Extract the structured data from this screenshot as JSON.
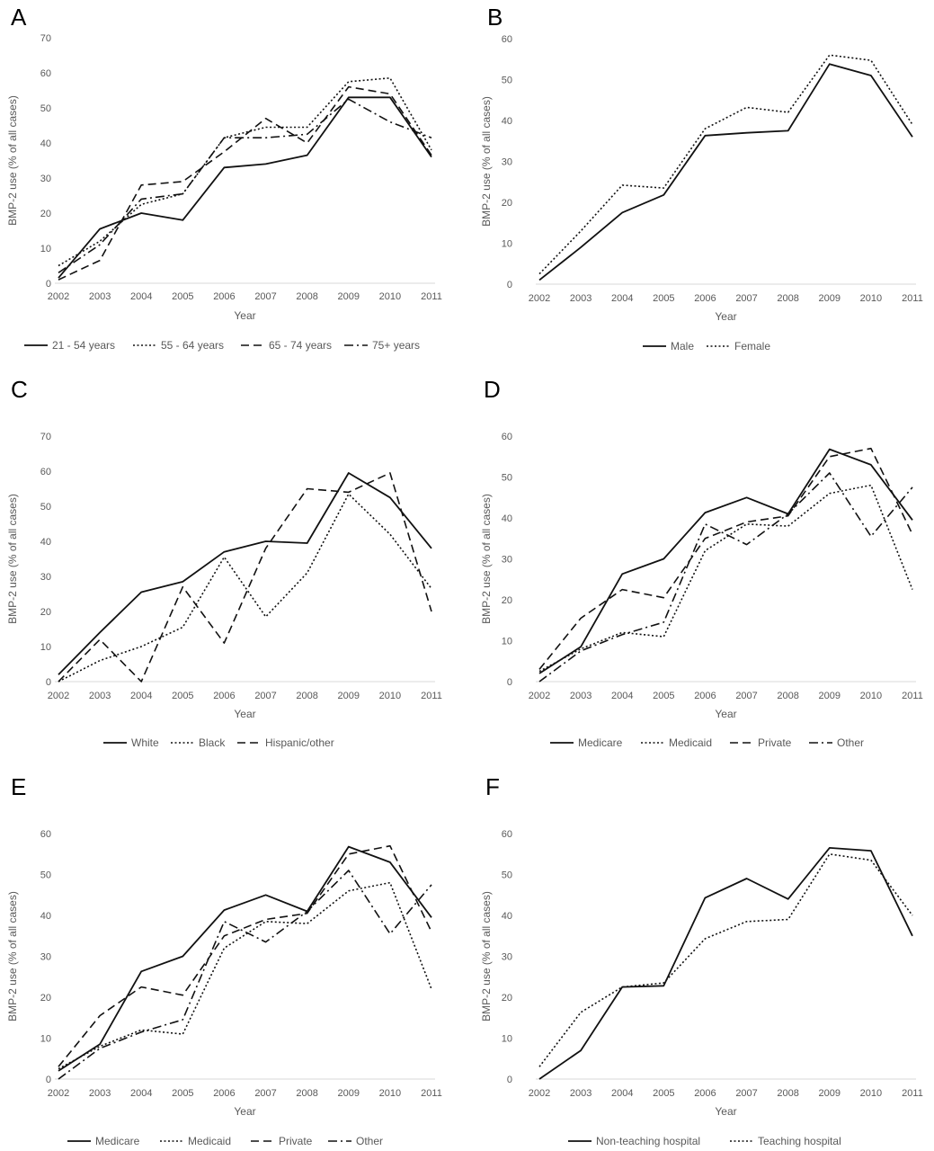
{
  "figure": {
    "panels": [
      "A",
      "B",
      "C",
      "D",
      "E",
      "F"
    ]
  },
  "chart_data": [
    {
      "panel": "A",
      "type": "line",
      "xlabel": "Year",
      "ylabel": "BMP-2 use (% of all cases)",
      "categories": [
        "2002",
        "2003",
        "2004",
        "2005",
        "2006",
        "2007",
        "2008",
        "2009",
        "2010",
        "2011"
      ],
      "ylim": [
        0,
        70
      ],
      "yticks": [
        0,
        10,
        20,
        30,
        40,
        50,
        60,
        70
      ],
      "grid": false,
      "legend": "bottom",
      "series": [
        {
          "name": "21 - 54 years",
          "style": "solid",
          "values": [
            1.5,
            15.5,
            20.0,
            18.0,
            33.0,
            34.0,
            36.5,
            53.0,
            53.0,
            36.0
          ]
        },
        {
          "name": "55 - 64 years",
          "style": "dotted",
          "values": [
            5.0,
            12.0,
            22.5,
            25.5,
            41.5,
            44.5,
            44.5,
            57.5,
            58.5,
            38.0
          ]
        },
        {
          "name": "65 - 74 years",
          "style": "dashed",
          "values": [
            1.0,
            6.5,
            28.0,
            29.0,
            37.5,
            47.0,
            40.0,
            56.0,
            54.0,
            36.5
          ]
        },
        {
          "name": "75+ years",
          "style": "dashdot",
          "values": [
            3.0,
            11.0,
            24.0,
            25.5,
            41.5,
            41.5,
            42.5,
            52.5,
            46.0,
            41.5
          ]
        }
      ]
    },
    {
      "panel": "B",
      "type": "line",
      "xlabel": "Year",
      "ylabel": "BMP-2 use (% of all cases)",
      "categories": [
        "2002",
        "2003",
        "2004",
        "2005",
        "2006",
        "2007",
        "2008",
        "2009",
        "2010",
        "2011"
      ],
      "ylim": [
        0,
        60
      ],
      "yticks": [
        0,
        10,
        20,
        30,
        40,
        50,
        60
      ],
      "grid": false,
      "legend": "bottom",
      "series": [
        {
          "name": "Male",
          "style": "solid",
          "values": [
            1.0,
            9.0,
            17.5,
            21.8,
            36.3,
            37.0,
            37.5,
            53.8,
            51.0,
            36.0
          ]
        },
        {
          "name": "Female",
          "style": "dotted",
          "values": [
            2.5,
            13.0,
            24.2,
            23.5,
            38.0,
            43.2,
            42.0,
            56.0,
            54.7,
            39.0
          ]
        }
      ]
    },
    {
      "panel": "C",
      "type": "line",
      "xlabel": "Year",
      "ylabel": "BMP-2 use (% of all cases)",
      "categories": [
        "2002",
        "2003",
        "2004",
        "2005",
        "2006",
        "2007",
        "2008",
        "2009",
        "2010",
        "2011"
      ],
      "ylim": [
        0,
        70
      ],
      "yticks": [
        0,
        10,
        20,
        30,
        40,
        50,
        60,
        70
      ],
      "grid": false,
      "legend": "bottom",
      "series": [
        {
          "name": "White",
          "style": "solid",
          "values": [
            2.0,
            14.0,
            25.5,
            28.5,
            37.0,
            40.0,
            39.5,
            59.5,
            52.5,
            38.0
          ]
        },
        {
          "name": "Black",
          "style": "dotted",
          "values": [
            0.0,
            6.0,
            10.0,
            15.5,
            35.5,
            18.5,
            31.0,
            53.5,
            42.0,
            26.5
          ]
        },
        {
          "name": "Hispanic/other",
          "style": "dashed",
          "values": [
            0.0,
            12.0,
            0.0,
            27.0,
            11.0,
            38.0,
            55.0,
            54.0,
            59.5,
            20.0
          ]
        }
      ]
    },
    {
      "panel": "D",
      "type": "line",
      "xlabel": "Year",
      "ylabel": "BMP-2 use (% of all cases)",
      "categories": [
        "2002",
        "2003",
        "2004",
        "2005",
        "2006",
        "2007",
        "2008",
        "2009",
        "2010",
        "2011"
      ],
      "ylim": [
        0,
        60
      ],
      "yticks": [
        0,
        10,
        20,
        30,
        40,
        50,
        60
      ],
      "grid": false,
      "legend": "bottom",
      "series": [
        {
          "name": "Medicare",
          "style": "solid",
          "values": [
            2.0,
            8.5,
            26.3,
            30.0,
            41.3,
            45.0,
            41.0,
            56.8,
            53.0,
            39.5
          ]
        },
        {
          "name": "Medicaid",
          "style": "dotted",
          "values": [
            2.5,
            8.0,
            12.0,
            11.0,
            32.0,
            38.5,
            38.0,
            46.0,
            48.0,
            22.5
          ]
        },
        {
          "name": "Private",
          "style": "dashed",
          "values": [
            3.0,
            15.5,
            22.5,
            20.5,
            35.0,
            39.0,
            40.5,
            55.0,
            57.0,
            36.0
          ]
        },
        {
          "name": "Other",
          "style": "dashdot",
          "values": [
            0.0,
            7.5,
            11.5,
            14.5,
            38.5,
            33.5,
            41.0,
            51.0,
            35.5,
            47.5
          ]
        }
      ]
    },
    {
      "panel": "E",
      "type": "line",
      "xlabel": "Year",
      "ylabel": "BMP-2 use (% of all cases)",
      "categories": [
        "2002",
        "2003",
        "2004",
        "2005",
        "2006",
        "2007",
        "2008",
        "2009",
        "2010",
        "2011"
      ],
      "ylim": [
        0,
        60
      ],
      "yticks": [
        0,
        10,
        20,
        30,
        40,
        50,
        60
      ],
      "grid": false,
      "legend": "bottom",
      "series": [
        {
          "name": "Medicare",
          "style": "solid",
          "values": [
            2.0,
            8.5,
            26.3,
            30.0,
            41.3,
            45.0,
            41.0,
            56.8,
            53.0,
            39.5
          ]
        },
        {
          "name": "Medicaid",
          "style": "dotted",
          "values": [
            2.5,
            8.0,
            12.0,
            11.0,
            32.0,
            38.5,
            38.0,
            46.0,
            48.0,
            22.0
          ]
        },
        {
          "name": "Private",
          "style": "dashed",
          "values": [
            3.0,
            15.5,
            22.5,
            20.5,
            35.0,
            39.0,
            40.5,
            55.0,
            57.0,
            36.0
          ]
        },
        {
          "name": "Other",
          "style": "dashdot",
          "values": [
            0.0,
            7.5,
            11.5,
            14.5,
            38.5,
            33.5,
            41.0,
            51.0,
            35.5,
            47.5
          ]
        }
      ]
    },
    {
      "panel": "F",
      "type": "line",
      "xlabel": "Year",
      "ylabel": "BMP-2 use (% of all cases)",
      "categories": [
        "2002",
        "2003",
        "2004",
        "2005",
        "2006",
        "2007",
        "2008",
        "2009",
        "2010",
        "2011"
      ],
      "ylim": [
        0,
        60
      ],
      "yticks": [
        0,
        10,
        20,
        30,
        40,
        50,
        60
      ],
      "grid": false,
      "legend": "bottom",
      "series": [
        {
          "name": "Non-teaching hospital",
          "style": "solid",
          "values": [
            0.0,
            7.0,
            22.5,
            22.8,
            44.3,
            49.0,
            44.0,
            56.5,
            55.8,
            35.0
          ]
        },
        {
          "name": "Teaching hospital",
          "style": "dotted",
          "values": [
            3.0,
            16.3,
            22.5,
            23.5,
            34.3,
            38.5,
            39.0,
            55.0,
            53.5,
            40.0
          ]
        }
      ]
    }
  ]
}
